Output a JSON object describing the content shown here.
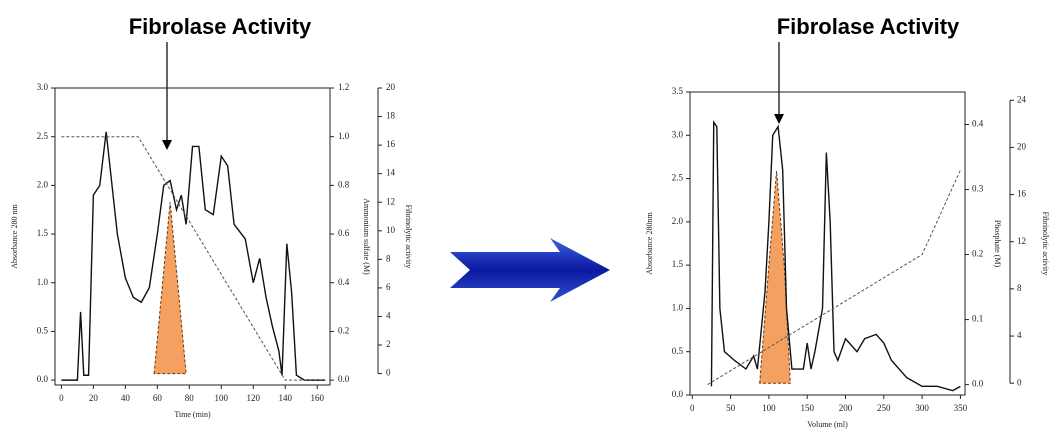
{
  "chart_data": [
    {
      "type": "line",
      "title": "Fibrolase Activity",
      "x_label": "Time (min)",
      "y_label": "Absorbance 280 nm",
      "y2_label": "Ammonium sulfate (M)",
      "y3_label": "Fibrinolytic activity",
      "xlim": [
        -4,
        168
      ],
      "xticks": [
        0,
        20,
        40,
        60,
        80,
        100,
        120,
        140,
        160
      ],
      "ylim": [
        -0.05,
        3.0
      ],
      "yticks": [
        {
          "value": 0,
          "label": "0.0"
        },
        0.5,
        {
          "value": 1,
          "label": "1.0"
        },
        1.5,
        {
          "value": 2,
          "label": "2.0"
        },
        2.5,
        {
          "value": 3,
          "label": "3.0"
        }
      ],
      "y2lim": [
        -0.02,
        1.2
      ],
      "y2ticks": [
        {
          "value": 0,
          "label": "0.0"
        },
        0.2,
        0.4,
        0.6,
        0.8,
        {
          "value": 1,
          "label": "1.0"
        },
        1.2
      ],
      "y3lim": [
        -0.8,
        20
      ],
      "y3ticks": [
        0,
        2,
        4,
        6,
        8,
        10,
        12,
        14,
        16,
        18,
        20
      ],
      "series": [
        {
          "name": "Absorbance",
          "kind": "line",
          "style": "solid",
          "color": "#111",
          "axis": "y",
          "x": [
            0,
            10,
            12,
            14,
            17,
            20,
            24,
            28,
            31,
            35,
            40,
            45,
            50,
            55,
            60,
            64,
            68,
            72,
            75,
            78,
            82,
            86,
            90,
            95,
            100,
            104,
            108,
            115,
            120,
            124,
            128,
            132,
            136,
            138,
            141,
            144,
            147,
            152,
            165
          ],
          "values": [
            0,
            0,
            0.7,
            0.05,
            0.05,
            1.9,
            2.0,
            2.55,
            2.1,
            1.5,
            1.05,
            0.85,
            0.8,
            0.95,
            1.5,
            2.0,
            2.05,
            1.75,
            1.9,
            1.6,
            2.4,
            2.4,
            1.75,
            1.7,
            2.3,
            2.2,
            1.6,
            1.45,
            1.0,
            1.25,
            0.85,
            0.55,
            0.3,
            0.05,
            1.4,
            0.9,
            0.05,
            0,
            0
          ]
        },
        {
          "name": "Ammonium sulfate",
          "kind": "line",
          "style": "dashed",
          "color": "#555",
          "axis": "y2",
          "x": [
            0,
            48,
            140,
            165
          ],
          "values": [
            1.0,
            1.0,
            0,
            0
          ]
        },
        {
          "name": "Fibrinolytic activity",
          "kind": "area",
          "style": "dashed",
          "color": "#f4a060",
          "axis": "y3",
          "x": [
            58,
            68,
            78
          ],
          "values": [
            0,
            12,
            0
          ]
        }
      ]
    },
    {
      "type": "line",
      "title": "Fibrolase Activity",
      "x_label": "Volume (ml)",
      "y_label": "Absorbance 280nm",
      "y2_label": "Phosphate (M)",
      "y3_label": "Fibrinolytic activity",
      "xlim": [
        -3,
        356
      ],
      "xticks": [
        0,
        50,
        100,
        150,
        200,
        250,
        300,
        350
      ],
      "ylim": [
        0,
        3.5
      ],
      "yticks": [
        {
          "value": 0,
          "label": "0.0"
        },
        0.5,
        {
          "value": 1,
          "label": "1.0"
        },
        1.5,
        {
          "value": 2,
          "label": "2.0"
        },
        2.5,
        {
          "value": 3,
          "label": "3.0"
        },
        3.5
      ],
      "y2lim": [
        -0.016,
        0.45
      ],
      "y2ticks": [
        {
          "value": 0,
          "label": "0.0"
        },
        0.1,
        0.2,
        0.3,
        0.4
      ],
      "y3lim": [
        -1,
        24.7
      ],
      "y3ticks": [
        0,
        4,
        8,
        12,
        16,
        20,
        24
      ],
      "series": [
        {
          "name": "Absorbance",
          "kind": "line",
          "style": "solid",
          "color": "#111",
          "axis": "y",
          "x": [
            25,
            28,
            32,
            36,
            42,
            55,
            70,
            80,
            85,
            95,
            100,
            105,
            112,
            118,
            123,
            130,
            145,
            150,
            155,
            160,
            170,
            175,
            180,
            185,
            190,
            200,
            215,
            225,
            240,
            250,
            260,
            280,
            300,
            320,
            340,
            350
          ],
          "values": [
            0.1,
            3.15,
            3.1,
            1.0,
            0.5,
            0.4,
            0.3,
            0.45,
            0.3,
            1.2,
            2.0,
            3.0,
            3.1,
            2.6,
            1.0,
            0.3,
            0.3,
            0.6,
            0.3,
            0.5,
            1.0,
            2.8,
            2.0,
            0.5,
            0.4,
            0.65,
            0.5,
            0.65,
            0.7,
            0.6,
            0.4,
            0.2,
            0.1,
            0.1,
            0.05,
            0.1
          ]
        },
        {
          "name": "Phosphate",
          "kind": "line",
          "style": "dashed",
          "color": "#555",
          "axis": "y2",
          "x": [
            20,
            300,
            350
          ],
          "values": [
            0,
            0.2,
            0.33
          ]
        },
        {
          "name": "Fibrinolytic activity",
          "kind": "area",
          "style": "dashed",
          "color": "#f4a060",
          "axis": "y3",
          "x": [
            88,
            100,
            110,
            120,
            128
          ],
          "values": [
            0,
            10,
            18,
            10,
            0
          ]
        }
      ]
    }
  ]
}
